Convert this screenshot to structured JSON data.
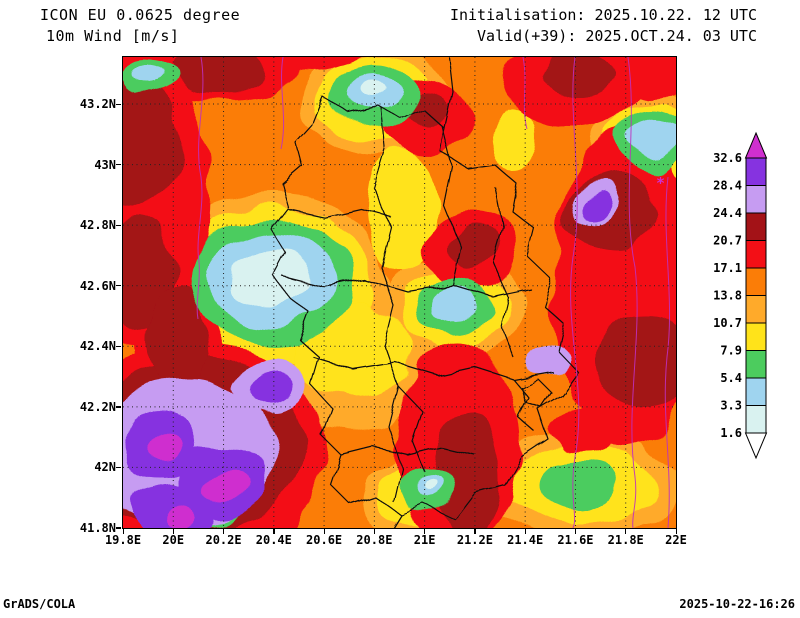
{
  "header": {
    "model_line": "ICON EU 0.0625 degree",
    "field_line": "10m Wind [m/s]",
    "init_line": "Initialisation: 2025.10.22. 12 UTC",
    "valid_line": "Valid(+39): 2025.OCT.24. 03 UTC"
  },
  "footer": {
    "left": "GrADS/COLA",
    "right": "2025-10-22-16:26"
  },
  "palette": {
    "base": "#fb7d07",
    "light_orange": "#ffaa2a",
    "yellow": "#ffe31a",
    "green": "#4ccc5e",
    "light_blue": "#9fd4ef",
    "pale_cyan": "#d9f2f0",
    "red": "#f30f16",
    "dark_red": "#a31217",
    "light_purple": "#c69cf2",
    "purple": "#8633e0",
    "magenta": "#cf2fcf",
    "border": "#111111",
    "contour": "#bf30bf"
  },
  "chart_data": {
    "type": "heatmap",
    "title": "ICON EU 0.0625 degree — 10m Wind [m/s]",
    "model": "ICON EU 0.0625 degree",
    "field": "10 m wind speed",
    "units": "m/s",
    "init": "2025.10.22. 12 UTC",
    "valid": "2025.OCT.24. 03 UTC (+39 h)",
    "projection": "lat/lon map of Kosovo and surrounding western Balkans",
    "x_axis": {
      "ticks": [
        "19.8E",
        "20E",
        "20.2E",
        "20.4E",
        "20.6E",
        "20.8E",
        "21E",
        "21.2E",
        "21.4E",
        "21.6E",
        "21.8E",
        "22E"
      ],
      "range_deg_east": [
        19.8,
        22.0
      ]
    },
    "y_axis": {
      "ticks_top_to_bottom": [
        "43.2N",
        "43N",
        "42.8N",
        "42.6N",
        "42.4N",
        "42.2N",
        "42N",
        "41.8N"
      ],
      "range_deg_north": [
        41.8,
        43.36
      ]
    },
    "legend": {
      "units": "m/s",
      "labels_top_to_bottom": [
        "32.6",
        "28.4",
        "24.4",
        "20.7",
        "17.1",
        "13.8",
        "10.7",
        "7.9",
        "5.4",
        "3.3",
        "1.6"
      ],
      "colors_bottom_to_top": [
        "#ffffff",
        "#d9f2f0",
        "#9fd4ef",
        "#4ccc5e",
        "#ffe31a",
        "#ffaa2a",
        "#fb7d07",
        "#f30f16",
        "#a31217",
        "#c69cf2",
        "#8633e0",
        "#cf2fcf"
      ]
    },
    "grid": "dotted 0.2-degree graticule",
    "overlays": [
      "black administrative boundaries",
      "thin magenta contour lines"
    ],
    "annotations": [
      {
        "glyph": "*",
        "color": "magenta",
        "approx_position": "21.75E 42.95N"
      }
    ],
    "notable_features": [
      "calm pocket 1.6-5.4 m/s around 20.3E-20.6E, 42.5N-42.8N (pale cyan/blue core)",
      "very strong wind >24 m/s (purple/magenta blobs) near 20.0E-20.4E, 41.9N-42.2N",
      "red band 17-21 m/s along western edge and eastern third of domain",
      "dark red 20.7-24.4 m/s cores on east side ~21.6E-22E, 42.2N-42.9N",
      "yellow/green low-wind pockets at top centre ~20.7E 43.1N, top right ~21.7E 43N and bottom centre ~21.1E 41.9N",
      "dominant background 13.8-17.1 m/s orange"
    ]
  }
}
